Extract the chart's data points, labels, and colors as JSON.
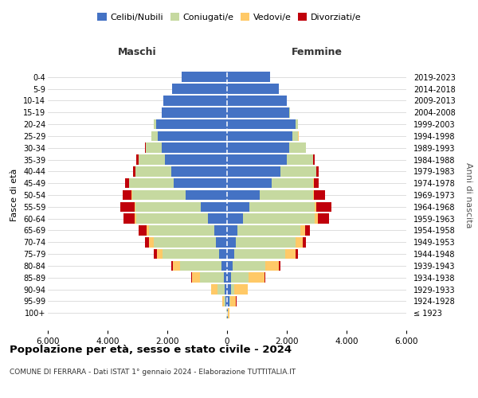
{
  "age_groups": [
    "100+",
    "95-99",
    "90-94",
    "85-89",
    "80-84",
    "75-79",
    "70-74",
    "65-69",
    "60-64",
    "55-59",
    "50-54",
    "45-49",
    "40-44",
    "35-39",
    "30-34",
    "25-29",
    "20-24",
    "15-19",
    "10-14",
    "5-9",
    "0-4"
  ],
  "birth_years": [
    "≤ 1923",
    "1924-1928",
    "1929-1933",
    "1934-1938",
    "1939-1943",
    "1944-1948",
    "1949-1953",
    "1954-1958",
    "1959-1963",
    "1964-1968",
    "1969-1973",
    "1974-1978",
    "1979-1983",
    "1984-1988",
    "1989-1993",
    "1994-1998",
    "1999-2003",
    "2004-2008",
    "2009-2013",
    "2014-2018",
    "2019-2023"
  ],
  "colors": {
    "celibi": "#4472c4",
    "coniugati": "#c6d9a0",
    "vedovi": "#ffc967",
    "divorziati": "#c0000b"
  },
  "maschi": {
    "celibi": [
      10,
      55,
      90,
      115,
      190,
      260,
      370,
      420,
      640,
      890,
      1380,
      1780,
      1880,
      2080,
      2180,
      2330,
      2380,
      2180,
      2130,
      1830,
      1530
    ],
    "coniugati": [
      8,
      55,
      240,
      790,
      1390,
      1890,
      2090,
      2190,
      2390,
      2190,
      1790,
      1490,
      1190,
      890,
      540,
      195,
      75,
      8,
      3,
      1,
      0
    ],
    "vedovi": [
      4,
      55,
      195,
      275,
      245,
      195,
      155,
      95,
      55,
      25,
      18,
      8,
      3,
      3,
      3,
      3,
      3,
      0,
      0,
      0,
      0
    ],
    "divorziati": [
      0,
      3,
      8,
      18,
      48,
      98,
      125,
      245,
      375,
      475,
      295,
      145,
      75,
      55,
      18,
      13,
      3,
      0,
      0,
      0,
      0
    ]
  },
  "femmine": {
    "celibi": [
      18,
      75,
      125,
      125,
      195,
      245,
      295,
      345,
      545,
      745,
      1090,
      1490,
      1790,
      1990,
      2090,
      2190,
      2290,
      2090,
      1990,
      1740,
      1440
    ],
    "coniugati": [
      3,
      35,
      115,
      595,
      1095,
      1695,
      1995,
      2095,
      2390,
      2190,
      1790,
      1390,
      1190,
      890,
      540,
      195,
      75,
      8,
      3,
      1,
      0
    ],
    "vedovi": [
      48,
      195,
      445,
      545,
      445,
      345,
      245,
      175,
      95,
      55,
      25,
      18,
      8,
      3,
      3,
      3,
      3,
      0,
      0,
      0,
      0
    ],
    "divorziati": [
      0,
      3,
      8,
      18,
      48,
      78,
      95,
      155,
      395,
      495,
      375,
      175,
      75,
      55,
      18,
      13,
      3,
      0,
      0,
      0,
      0
    ]
  },
  "xlim": 6000,
  "xticks": [
    -6000,
    -4000,
    -2000,
    0,
    2000,
    4000,
    6000
  ],
  "xtick_labels": [
    "6.000",
    "4.000",
    "2.000",
    "0",
    "2.000",
    "4.000",
    "6.000"
  ],
  "title": "Popolazione per età, sesso e stato civile - 2024",
  "subtitle": "COMUNE DI FERRARA - Dati ISTAT 1° gennaio 2024 - Elaborazione TUTTITALIA.IT",
  "ylabel": "Fasce di età",
  "ylabel_right": "Anni di nascita",
  "legend_labels": [
    "Celibi/Nubili",
    "Coniugati/e",
    "Vedovi/e",
    "Divorziati/e"
  ],
  "maschi_label": "Maschi",
  "femmine_label": "Femmine",
  "bg_color": "#ffffff",
  "grid_color": "#d0d0d0"
}
